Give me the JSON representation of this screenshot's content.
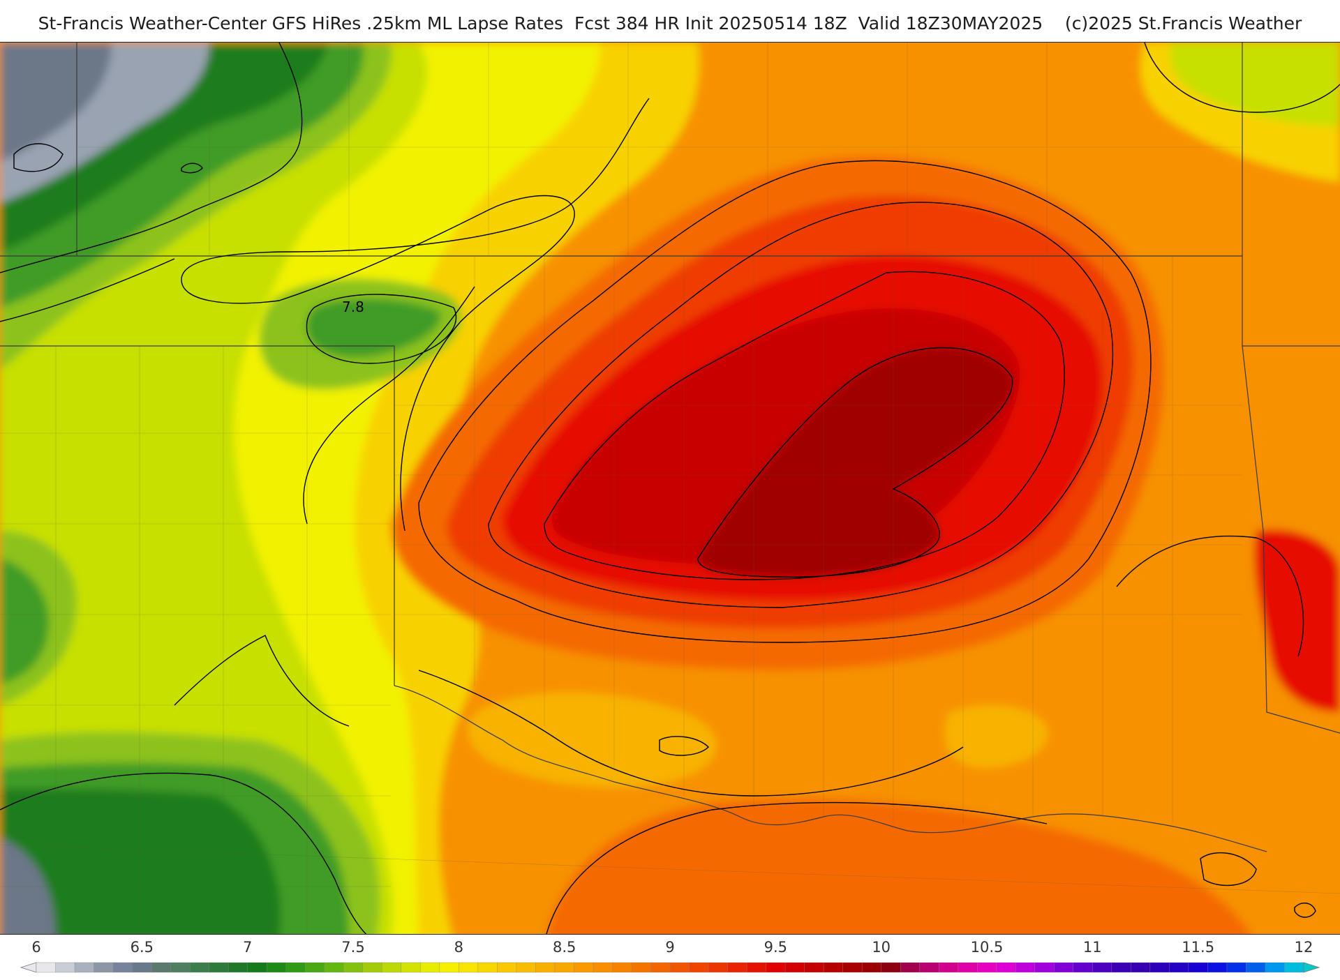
{
  "header": {
    "title": "St-Francis Weather-Center GFS HiRes .25km ML Lapse Rates  Fcst 384 HR Init 20250514 18Z  Valid 18Z30MAY2025    (c)2025 St.Francis Weather"
  },
  "map": {
    "contour_label": "7.8",
    "colors": {
      "gray_dark": "#6c7787",
      "gray_light": "#9aa3b2",
      "green_dark": "#1a7d1a",
      "green_mid": "#3f9c28",
      "green_light": "#8cc21a",
      "yellow_green": "#c7e000",
      "yellow": "#f2f200",
      "gold": "#f8d200",
      "orange_light": "#f7b300",
      "orange": "#f79100",
      "orange_dark": "#f46a00",
      "red_orange": "#ef3c00",
      "red": "#e61000",
      "dark_red": "#c80000",
      "maroon": "#a00000"
    }
  },
  "colorbar": {
    "ticks": [
      "6",
      "6.5",
      "7",
      "7.5",
      "8",
      "8.5",
      "9",
      "9.5",
      "10",
      "10.5",
      "11",
      "11.5",
      "12"
    ],
    "min": 6,
    "max": 12,
    "step": 0.1,
    "colors": [
      "#e6e8ec",
      "#c9cdd6",
      "#aab1be",
      "#8d96a6",
      "#77839a",
      "#687a8a",
      "#5b7a6e",
      "#4d8060",
      "#3c7d4c",
      "#2e7a3a",
      "#1f782a",
      "#147a1a",
      "#1b8a16",
      "#2f9a14",
      "#4aa912",
      "#64b610",
      "#82c20e",
      "#a2cc0a",
      "#bcd806",
      "#d4e202",
      "#e8ec00",
      "#f4f000",
      "#f8e400",
      "#f8d600",
      "#f8c800",
      "#f8bc00",
      "#f8b000",
      "#f8a600",
      "#f89a00",
      "#f88e00",
      "#f68200",
      "#f47400",
      "#f26600",
      "#f05600",
      "#ee4600",
      "#ec3600",
      "#ea2400",
      "#e61200",
      "#e00000",
      "#d20000",
      "#c40000",
      "#b60000",
      "#a80000",
      "#9a0000",
      "#8c0010",
      "#a0004c",
      "#b80070",
      "#d0008c",
      "#e000a8",
      "#e800c0",
      "#dc00d4",
      "#c000dc",
      "#a000dc",
      "#8000d8",
      "#6400cc",
      "#4c00c0",
      "#3c00b4",
      "#3400b0",
      "#2c00b8",
      "#2400c4",
      "#1600d4",
      "#0c10e0",
      "#0030e8",
      "#0060ec",
      "#0098ec",
      "#00bcdc",
      "#00c8c8"
    ]
  }
}
